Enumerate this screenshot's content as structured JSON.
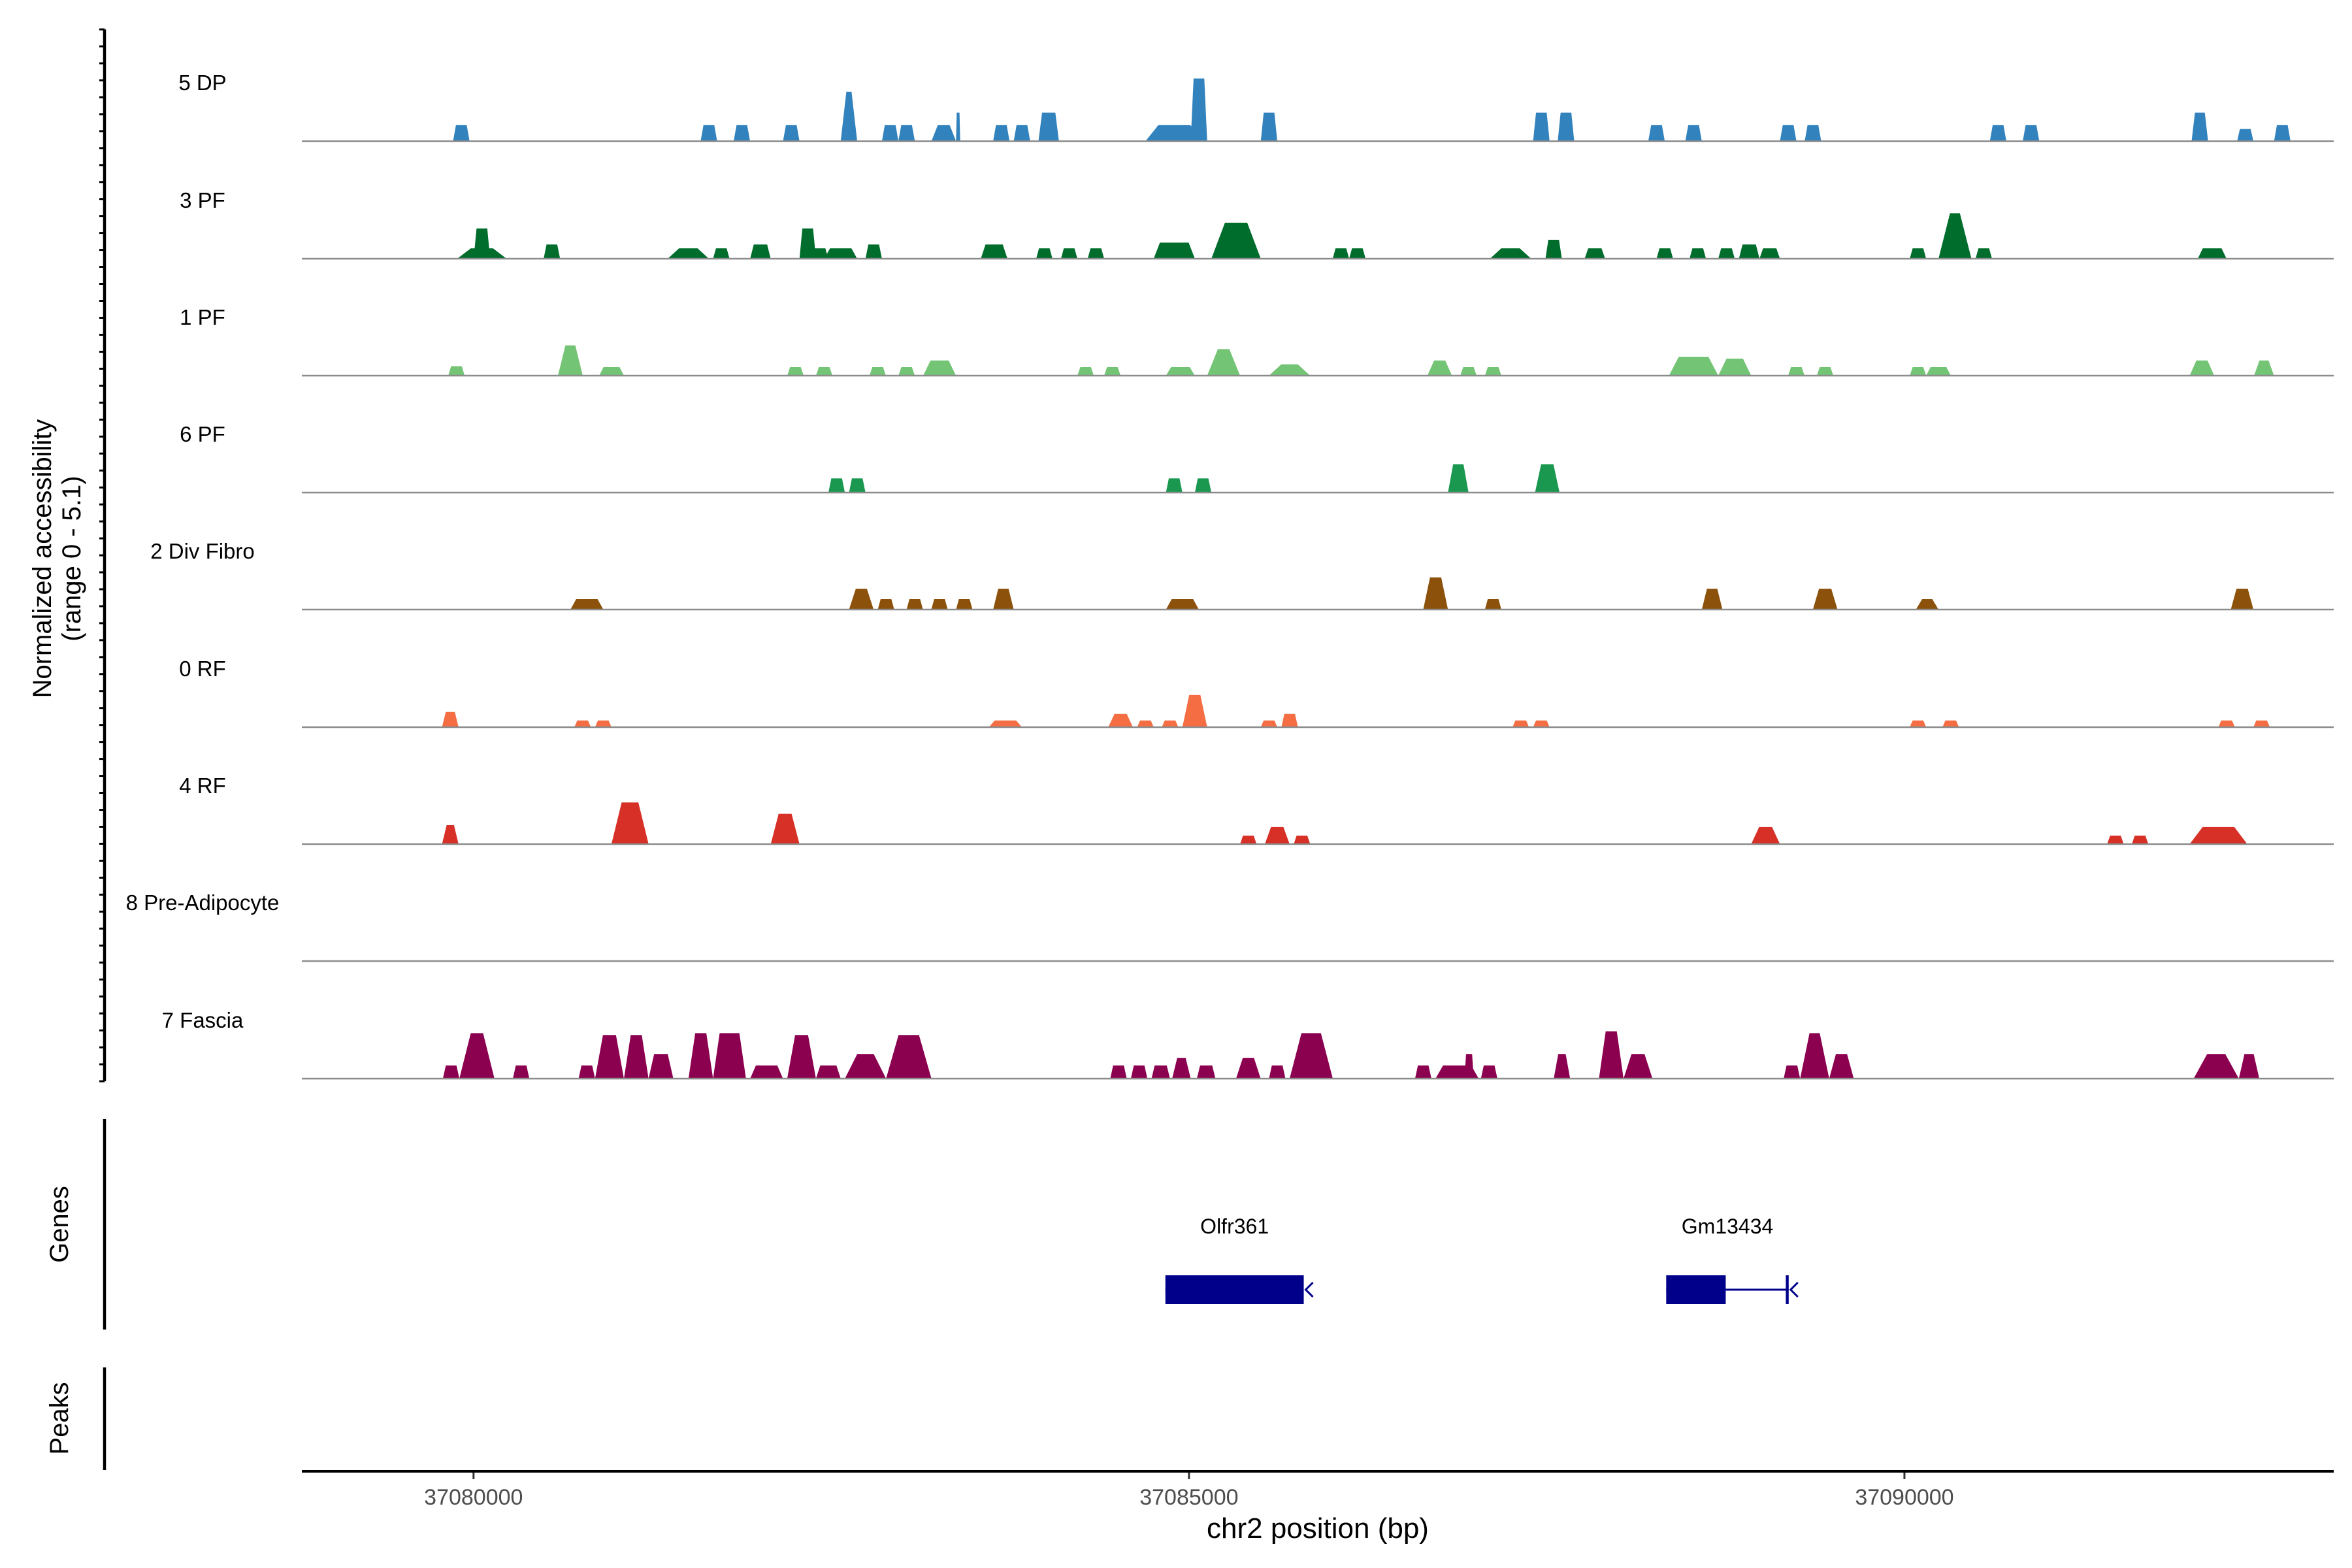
{
  "chart_data": {
    "type": "area",
    "title": "",
    "y_axis_label_line1": "Normalized accessibility",
    "y_axis_label_line2": "(range 0 - 5.1)",
    "y_range": [
      0,
      5.1
    ],
    "xlabel": "chr2 position (bp)",
    "x_range": [
      37078800,
      37093000
    ],
    "x_ticks": [
      37080000,
      37085000,
      37090000
    ],
    "x_tick_labels": [
      "37080000",
      "37085000",
      "37090000"
    ],
    "tracks": [
      {
        "name": "5 DP",
        "color": "#3182bd",
        "peaks": [
          [
            37079857,
            37079972,
            0.85
          ],
          [
            37081587,
            37081702,
            0.85
          ],
          [
            37081818,
            37081932,
            0.85
          ],
          [
            37082163,
            37082278,
            0.85
          ],
          [
            37082566,
            37082681,
            2.6,
            0.32
          ],
          [
            37082854,
            37082969,
            0.85
          ],
          [
            37082969,
            37083084,
            0.85
          ],
          [
            37083200,
            37083372,
            0.85,
            0.48
          ],
          [
            37083372,
            37083401,
            1.5
          ],
          [
            37083631,
            37083746,
            0.85
          ],
          [
            37083775,
            37083890,
            0.85
          ],
          [
            37083948,
            37084091,
            1.5
          ],
          [
            37084696,
            37085099,
            0.85,
            0.55
          ],
          [
            37085012,
            37085127,
            3.3
          ],
          [
            37085502,
            37085617,
            1.5
          ],
          [
            37087405,
            37087520,
            1.5,
            0.65
          ],
          [
            37087577,
            37087692,
            1.5
          ],
          [
            37088210,
            37088325,
            0.85
          ],
          [
            37088469,
            37088584,
            0.85
          ],
          [
            37089130,
            37089245,
            0.85
          ],
          [
            37089303,
            37089418,
            0.85
          ],
          [
            37090597,
            37090712,
            0.85
          ],
          [
            37090827,
            37090942,
            0.85
          ],
          [
            37092007,
            37092122,
            1.5,
            0.6
          ],
          [
            37092325,
            37092439,
            0.65
          ],
          [
            37092583,
            37092698,
            0.85
          ]
        ]
      },
      {
        "name": "3 PF",
        "color": "#006d2c",
        "peaks": [
          [
            37079886,
            37080231,
            0.55,
            0.45
          ],
          [
            37080001,
            37080116,
            1.6
          ],
          [
            37080490,
            37080605,
            0.75
          ],
          [
            37081357,
            37081645,
            0.55,
            0.45
          ],
          [
            37081674,
            37081789,
            0.55
          ],
          [
            37081933,
            37082077,
            0.75
          ],
          [
            37082278,
            37082393,
            1.6
          ],
          [
            37082364,
            37082479,
            0.55
          ],
          [
            37082451,
            37082681,
            0.55
          ],
          [
            37082739,
            37082854,
            0.75
          ],
          [
            37083545,
            37083731,
            0.75
          ],
          [
            37083932,
            37084046,
            0.55
          ],
          [
            37084105,
            37084220,
            0.55
          ],
          [
            37084292,
            37084407,
            0.55
          ],
          [
            37084753,
            37085041,
            0.85,
            0.7
          ],
          [
            37085156,
            37085502,
            1.9,
            0.45
          ],
          [
            37086004,
            37086119,
            0.55
          ],
          [
            37086119,
            37086234,
            0.55
          ],
          [
            37087103,
            37087391,
            0.55,
            0.45
          ],
          [
            37087491,
            37087606,
            1.0
          ],
          [
            37087765,
            37087908,
            0.55
          ],
          [
            37088268,
            37088383,
            0.55
          ],
          [
            37088498,
            37088613,
            0.55
          ],
          [
            37088699,
            37088814,
            0.55
          ],
          [
            37088843,
            37088987,
            0.75
          ],
          [
            37088987,
            37089130,
            0.55
          ],
          [
            37090037,
            37090152,
            0.55
          ],
          [
            37090238,
            37090468,
            2.4,
            0.3
          ],
          [
            37090497,
            37090612,
            0.55
          ],
          [
            37092050,
            37092251,
            0.55
          ]
        ]
      },
      {
        "name": "1 PF",
        "color": "#74c476",
        "peaks": [
          [
            37079823,
            37079938,
            0.5
          ],
          [
            37080590,
            37080763,
            1.6,
            0.4
          ],
          [
            37080878,
            37081051,
            0.45
          ],
          [
            37082192,
            37082307,
            0.45
          ],
          [
            37082393,
            37082508,
            0.45
          ],
          [
            37082767,
            37082882,
            0.45
          ],
          [
            37082969,
            37083084,
            0.45
          ],
          [
            37083142,
            37083372,
            0.8,
            0.55
          ],
          [
            37084220,
            37084335,
            0.45
          ],
          [
            37084407,
            37084522,
            0.45
          ],
          [
            37084839,
            37085041,
            0.45
          ],
          [
            37085127,
            37085357,
            1.4,
            0.35
          ],
          [
            37085559,
            37085847,
            0.6,
            0.4
          ],
          [
            37086666,
            37086838,
            0.8,
            0.45
          ],
          [
            37086896,
            37087010,
            0.45
          ],
          [
            37087068,
            37087183,
            0.45
          ],
          [
            37088354,
            37088699,
            1.0,
            0.6
          ],
          [
            37088699,
            37088929,
            0.9,
            0.5
          ],
          [
            37089187,
            37089302,
            0.45
          ],
          [
            37089388,
            37089503,
            0.45
          ],
          [
            37090037,
            37090152,
            0.45
          ],
          [
            37090152,
            37090324,
            0.45
          ],
          [
            37091993,
            37092165,
            0.8,
            0.45
          ],
          [
            37092443,
            37092583,
            0.8,
            0.45
          ]
        ]
      },
      {
        "name": "6 PF",
        "color": "#1a9850",
        "peaks": [
          [
            37082480,
            37082595,
            0.75
          ],
          [
            37082624,
            37082739,
            0.75
          ],
          [
            37084839,
            37084954,
            0.75
          ],
          [
            37085041,
            37085156,
            0.75
          ],
          [
            37086810,
            37086954,
            1.5,
            0.5
          ],
          [
            37087418,
            37087590,
            1.5,
            0.5
          ]
        ]
      },
      {
        "name": "2 Div Fibro",
        "color": "#8c510a",
        "peaks": [
          [
            37080677,
            37080907,
            0.55
          ],
          [
            37082624,
            37082796,
            1.1,
            0.45
          ],
          [
            37082825,
            37082940,
            0.55
          ],
          [
            37083026,
            37083141,
            0.55
          ],
          [
            37083199,
            37083314,
            0.55
          ],
          [
            37083372,
            37083487,
            0.55
          ],
          [
            37083631,
            37083775,
            1.1,
            0.5
          ],
          [
            37084839,
            37085069,
            0.55
          ],
          [
            37086637,
            37086810,
            1.7,
            0.45
          ],
          [
            37087068,
            37087183,
            0.55
          ],
          [
            37088584,
            37088728,
            1.1,
            0.5
          ],
          [
            37089360,
            37089532,
            1.1,
            0.5
          ],
          [
            37090080,
            37090238,
            0.55,
            0.45
          ],
          [
            37092281,
            37092439,
            1.1,
            0.5
          ]
        ]
      },
      {
        "name": "0 RF",
        "color": "#f46d43",
        "peaks": [
          [
            37079780,
            37079895,
            0.8,
            0.55
          ],
          [
            37080705,
            37080820,
            0.35
          ],
          [
            37080849,
            37080964,
            0.35
          ],
          [
            37083602,
            37083832,
            0.35
          ],
          [
            37084436,
            37084608,
            0.7,
            0.5
          ],
          [
            37084638,
            37084753,
            0.35
          ],
          [
            37084810,
            37084925,
            0.35
          ],
          [
            37084954,
            37085127,
            1.7,
            0.45
          ],
          [
            37085502,
            37085617,
            0.35
          ],
          [
            37085646,
            37085761,
            0.7
          ],
          [
            37087261,
            37087376,
            0.35
          ],
          [
            37087405,
            37087520,
            0.35
          ],
          [
            37090037,
            37090152,
            0.35
          ],
          [
            37090266,
            37090381,
            0.35
          ],
          [
            37092194,
            37092309,
            0.35
          ],
          [
            37092439,
            37092554,
            0.35
          ]
        ]
      },
      {
        "name": "4 RF",
        "color": "#d73027",
        "peaks": [
          [
            37079780,
            37079895,
            1.0,
            0.45
          ],
          [
            37080964,
            37081223,
            2.2,
            0.45
          ],
          [
            37082077,
            37082278,
            1.6,
            0.45
          ],
          [
            37085357,
            37085472,
            0.45
          ],
          [
            37085530,
            37085703,
            0.9,
            0.5
          ],
          [
            37085732,
            37085847,
            0.45
          ],
          [
            37088929,
            37089130,
            0.9,
            0.45
          ],
          [
            37091417,
            37091532,
            0.45
          ],
          [
            37091589,
            37091704,
            0.45
          ],
          [
            37091993,
            37092396,
            0.9,
            0.55
          ]
        ]
      },
      {
        "name": "8 Pre-Adipocyte",
        "color": "#7a0177",
        "peaks": []
      },
      {
        "name": "7 Fascia",
        "color": "#8c0050",
        "peaks": [
          [
            37079786,
            37079901,
            0.7
          ],
          [
            37079901,
            37080146,
            2.4,
            0.35
          ],
          [
            37080275,
            37080390,
            0.7
          ],
          [
            37080734,
            37080849,
            0.7
          ],
          [
            37080849,
            37081051,
            2.3,
            0.45
          ],
          [
            37081051,
            37081223,
            2.3,
            0.45
          ],
          [
            37081223,
            37081396,
            1.3,
            0.55
          ],
          [
            37081502,
            37081674,
            2.4,
            0.45
          ],
          [
            37081674,
            37081904,
            2.4,
            0.6
          ],
          [
            37081933,
            37082163,
            0.7
          ],
          [
            37082192,
            37082393,
            2.3,
            0.45
          ],
          [
            37082393,
            37082566,
            0.7
          ],
          [
            37082595,
            37082883,
            1.3,
            0.4
          ],
          [
            37082883,
            37083200,
            2.3,
            0.45
          ],
          [
            37084450,
            37084565,
            0.7
          ],
          [
            37084594,
            37084709,
            0.7
          ],
          [
            37084738,
            37084867,
            0.7
          ],
          [
            37084882,
            37085012,
            1.1,
            0.45
          ],
          [
            37085055,
            37085185,
            0.7
          ],
          [
            37085329,
            37085501,
            1.1,
            0.45
          ],
          [
            37085559,
            37085674,
            0.7
          ],
          [
            37085703,
            37086005,
            2.4,
            0.45
          ],
          [
            37086580,
            37086694,
            0.7
          ],
          [
            37086723,
            37087025,
            0.7
          ],
          [
            37086925,
            37086990,
            1.3
          ],
          [
            37087040,
            37087155,
            0.7
          ],
          [
            37087549,
            37087664,
            1.3,
            0.45
          ],
          [
            37087865,
            37088037,
            2.5,
            0.45
          ],
          [
            37088037,
            37088239,
            1.3,
            0.45
          ],
          [
            37089156,
            37089271,
            0.7
          ],
          [
            37089271,
            37089474,
            2.4,
            0.35
          ],
          [
            37089474,
            37089646,
            1.3,
            0.45
          ],
          [
            37092021,
            37092337,
            1.3,
            0.4
          ],
          [
            37092337,
            37092480,
            1.3,
            0.45
          ]
        ]
      }
    ],
    "genes_label": "Genes",
    "genes": [
      {
        "name": "Olfr361",
        "exons": [
          [
            37084835,
            37085802
          ]
        ],
        "span": [
          37084835,
          37085802
        ],
        "end_marker": "left-arrow"
      },
      {
        "name": "Gm13434",
        "exons": [
          [
            37088335,
            37088751
          ],
          [
            37089171,
            37089191
          ]
        ],
        "span": [
          37088335,
          37089191
        ],
        "end_marker": "left-arrow-bar"
      }
    ],
    "gene_color": "#00008b",
    "peaks_label": "Peaks",
    "peaks_annotations": []
  }
}
